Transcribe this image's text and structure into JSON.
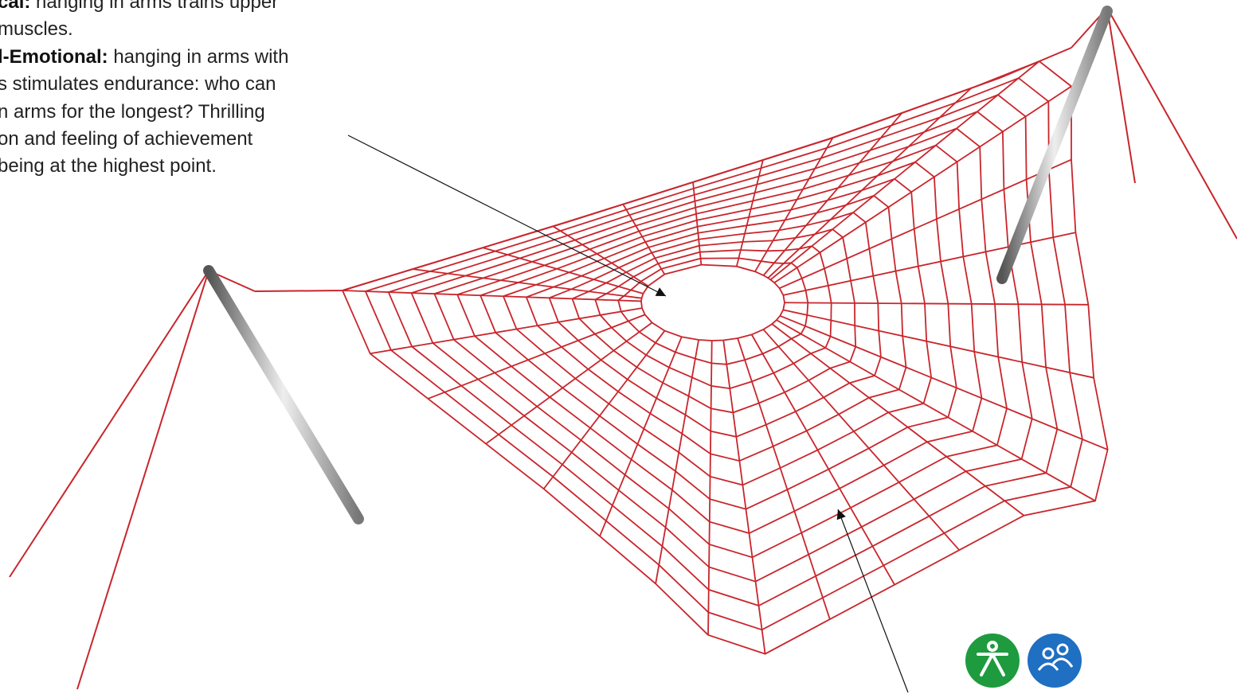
{
  "text": {
    "lines": [
      {
        "label": "cal:",
        "text": " hanging in arms trains upper"
      },
      {
        "text": "muscles."
      },
      {
        "label": "l-Emotional:",
        "text": " hanging in arms with"
      },
      {
        "text": "s stimulates endurance: who can"
      },
      {
        "text": "n arms for the longest? Thrilling"
      },
      {
        "text": "on and feeling of achievement"
      },
      {
        "text": "being at the highest point."
      }
    ]
  }
}
